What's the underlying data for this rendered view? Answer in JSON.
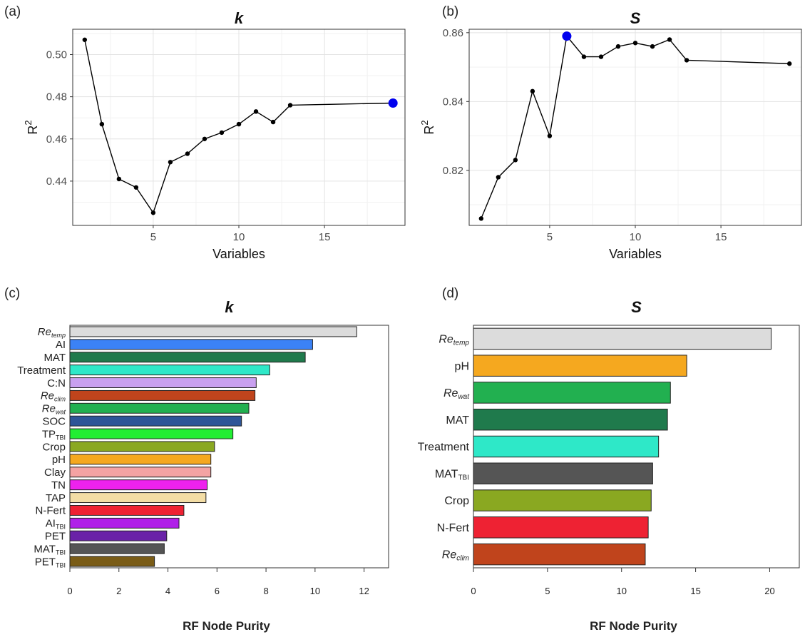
{
  "chart_data": [
    {
      "type": "line",
      "panel_label": "(a)",
      "title": "k",
      "xlabel": "Variables",
      "ylabel_base": "R",
      "ylabel_sup": "2",
      "xlim": [
        0.3,
        19.7
      ],
      "ylim": [
        0.419,
        0.512
      ],
      "x_ticks": [
        5,
        10,
        15
      ],
      "y_ticks": [
        0.44,
        0.46,
        0.48,
        0.5
      ],
      "y_tick_labels": [
        "0.44",
        "0.46",
        "0.48",
        "0.50"
      ],
      "grid": true,
      "x": [
        1,
        2,
        3,
        4,
        5,
        6,
        7,
        8,
        9,
        10,
        11,
        12,
        13,
        19
      ],
      "y": [
        0.507,
        0.467,
        0.441,
        0.437,
        0.425,
        0.449,
        0.453,
        0.46,
        0.463,
        0.467,
        0.473,
        0.468,
        0.476,
        0.477
      ],
      "highlight_index": 13,
      "highlight_color": "#0000ee"
    },
    {
      "type": "line",
      "panel_label": "(b)",
      "title": "S",
      "xlabel": "Variables",
      "ylabel_base": "R",
      "ylabel_sup": "2",
      "xlim": [
        0.3,
        19.7
      ],
      "ylim": [
        0.804,
        0.861
      ],
      "x_ticks": [
        5,
        10,
        15
      ],
      "y_ticks": [
        0.82,
        0.84,
        0.86
      ],
      "y_tick_labels": [
        "0.82",
        "0.84",
        "0.86"
      ],
      "grid": true,
      "x": [
        1,
        2,
        3,
        4,
        5,
        6,
        7,
        8,
        9,
        10,
        11,
        12,
        13,
        19
      ],
      "y": [
        0.806,
        0.818,
        0.823,
        0.843,
        0.83,
        0.859,
        0.853,
        0.853,
        0.856,
        0.857,
        0.856,
        0.858,
        0.852,
        0.851
      ],
      "highlight_index": 5,
      "highlight_color": "#0000ee"
    },
    {
      "type": "bar",
      "orientation": "horizontal",
      "panel_label": "(c)",
      "title": "k",
      "xlabel": "RF Node Purity",
      "xlim": [
        0,
        13
      ],
      "x_ticks": [
        0,
        2,
        4,
        6,
        8,
        10,
        12
      ],
      "grid": false,
      "categories": [
        {
          "base": "Re",
          "sub": "temp",
          "italic": true
        },
        {
          "base": "AI",
          "sub": "",
          "italic": false
        },
        {
          "base": "MAT",
          "sub": "",
          "italic": false
        },
        {
          "base": "Treatment",
          "sub": "",
          "italic": false
        },
        {
          "base": "C:N",
          "sub": "",
          "italic": false
        },
        {
          "base": "Re",
          "sub": "clim",
          "italic": true
        },
        {
          "base": "Re",
          "sub": "wat",
          "italic": true
        },
        {
          "base": "SOC",
          "sub": "",
          "italic": false
        },
        {
          "base": "TP",
          "sub": "TBI",
          "italic": false
        },
        {
          "base": "Crop",
          "sub": "",
          "italic": false
        },
        {
          "base": "pH",
          "sub": "",
          "italic": false
        },
        {
          "base": "Clay",
          "sub": "",
          "italic": false
        },
        {
          "base": "TN",
          "sub": "",
          "italic": false
        },
        {
          "base": "TAP",
          "sub": "",
          "italic": false
        },
        {
          "base": "N-Fert",
          "sub": "",
          "italic": false
        },
        {
          "base": "AI",
          "sub": "TBI",
          "italic": false
        },
        {
          "base": "PET",
          "sub": "",
          "italic": false
        },
        {
          "base": "MAT",
          "sub": "TBI",
          "italic": false
        },
        {
          "base": "PET",
          "sub": "TBI",
          "italic": false
        }
      ],
      "values": [
        11.7,
        9.9,
        9.6,
        8.15,
        7.6,
        7.55,
        7.3,
        7.0,
        6.65,
        5.9,
        5.75,
        5.75,
        5.6,
        5.55,
        4.65,
        4.45,
        3.95,
        3.85,
        3.45
      ],
      "colors": [
        "#dcdcdc",
        "#3b82f6",
        "#1f7a4c",
        "#2ee8c8",
        "#c9a0f0",
        "#c0441c",
        "#22b050",
        "#2e5597",
        "#22ee33",
        "#8aa821",
        "#f5a81f",
        "#f4a3a3",
        "#ee22ee",
        "#f3dda5",
        "#ee2233",
        "#b020e8",
        "#6a22a8",
        "#555555",
        "#7a5c16"
      ]
    },
    {
      "type": "bar",
      "orientation": "horizontal",
      "panel_label": "(d)",
      "title": "S",
      "xlabel": "RF Node Purity",
      "xlim": [
        0,
        22
      ],
      "x_ticks": [
        0,
        5,
        10,
        15,
        20
      ],
      "grid": false,
      "categories": [
        {
          "base": "Re",
          "sub": "temp",
          "italic": true
        },
        {
          "base": "pH",
          "sub": "",
          "italic": false
        },
        {
          "base": "Re",
          "sub": "wat",
          "italic": true
        },
        {
          "base": "MAT",
          "sub": "",
          "italic": false
        },
        {
          "base": "Treatment",
          "sub": "",
          "italic": false
        },
        {
          "base": "MAT",
          "sub": "TBI",
          "italic": false
        },
        {
          "base": "Crop",
          "sub": "",
          "italic": false
        },
        {
          "base": "N-Fert",
          "sub": "",
          "italic": false
        },
        {
          "base": "Re",
          "sub": "clim",
          "italic": true
        }
      ],
      "values": [
        20.1,
        14.4,
        13.3,
        13.1,
        12.5,
        12.1,
        12.0,
        11.8,
        11.6
      ],
      "colors": [
        "#dcdcdc",
        "#f5a81f",
        "#22b050",
        "#1f7a4c",
        "#2ee8c8",
        "#555555",
        "#8aa821",
        "#ee2233",
        "#c0441c"
      ]
    }
  ]
}
